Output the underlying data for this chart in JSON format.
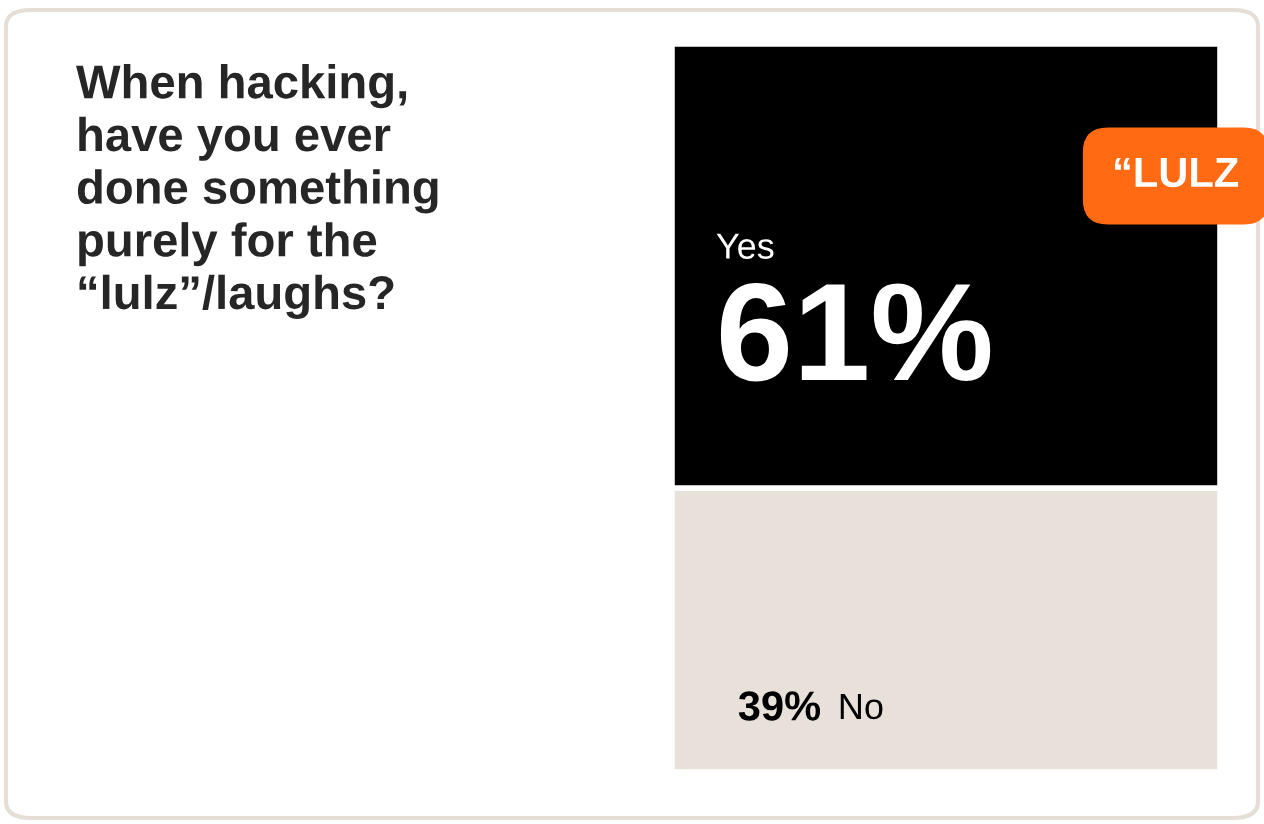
{
  "chart_data": {
    "type": "bar",
    "stacked": true,
    "title": "When hacking,\nhave you ever\ndone something\npurely for the\n“lulz”/laughs?",
    "categories": [
      null
    ],
    "series": [
      {
        "name": "No",
        "color": "#e8e1da",
        "values": [
          39
        ],
        "value_labels": [
          "39%"
        ]
      },
      {
        "name": "Yes",
        "color": "#000000",
        "values": [
          61
        ],
        "value_labels": [
          "61%"
        ]
      }
    ],
    "ylim": [
      0,
      100
    ],
    "tick_labels": false,
    "annotations": [
      "“LULZ"
    ]
  }
}
